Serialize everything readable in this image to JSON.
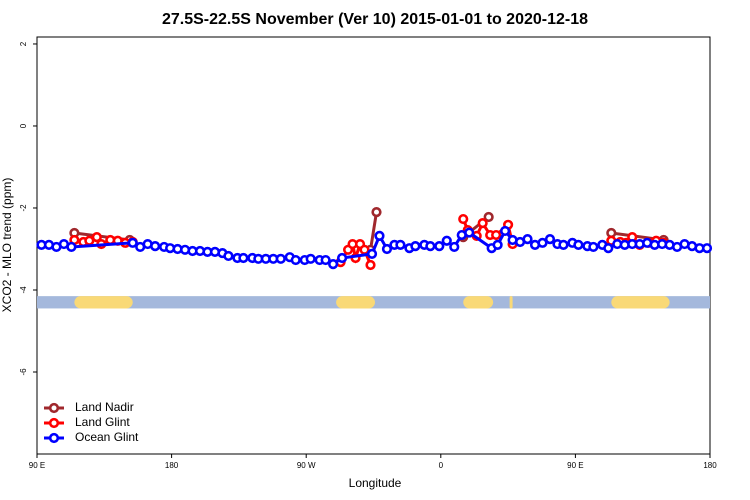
{
  "chart_data": {
    "type": "line",
    "title": "27.5S-22.5S November (Ver 10)   2015-01-01 to 2020-12-18",
    "x_label": "Longitude",
    "y_label": "XCO2 - MLO trend (ppm)",
    "xlim": [
      90,
      540
    ],
    "ylim": [
      -8,
      2.17
    ],
    "xticks": [
      {
        "value": 90,
        "label": "90 E"
      },
      180,
      {
        "value": 270,
        "label": "90 W"
      },
      {
        "value": 360,
        "label": "0"
      },
      {
        "value": 450,
        "label": "90 E"
      },
      {
        "value": 540,
        "label": "180"
      }
    ],
    "yticks": [
      -6,
      -4,
      -2,
      0,
      2
    ],
    "legend": "bottom-left",
    "strip": [
      -4.45,
      -4.15
    ],
    "strip_color": "#a4b8dc",
    "land_color": "#f9d977",
    "land": [
      [
        115,
        154
      ],
      [
        290,
        316
      ],
      [
        375,
        395
      ],
      [
        406,
        408
      ],
      [
        474,
        513
      ]
    ],
    "series": [
      {
        "name": "Land Nadir",
        "color": "#a0282d",
        "x": [
          115,
          152,
          null,
          313,
          317,
          null,
          375,
          392,
          null,
          474,
          509
        ],
        "values": [
          -2.61,
          -2.78,
          null,
          -3.02,
          -2.1,
          null,
          -2.71,
          -2.22,
          null,
          -2.61,
          -2.78
        ]
      },
      {
        "name": "Land Glint",
        "color": "#ff0000",
        "x": [
          115,
          121,
          125,
          130,
          133,
          139,
          144,
          149,
          154,
          null,
          293,
          298,
          301,
          303,
          306,
          309,
          313,
          null,
          375,
          378,
          384,
          388,
          393,
          397,
          405,
          408,
          null,
          474,
          480,
          484,
          488,
          493,
          499,
          504,
          509
        ],
        "values": [
          -2.78,
          -2.83,
          -2.8,
          -2.71,
          -2.88,
          -2.78,
          -2.8,
          -2.85,
          -2.83,
          null,
          -3.32,
          -3.02,
          -2.88,
          -3.22,
          -2.88,
          -3.02,
          -3.39,
          null,
          -2.27,
          -2.54,
          -2.68,
          -2.37,
          -2.66,
          -2.66,
          -2.41,
          -2.88,
          null,
          -2.8,
          -2.83,
          -2.85,
          -2.71,
          -2.9,
          -2.85,
          -2.8,
          -2.85
        ]
      },
      {
        "name": "Ocean Glint",
        "color": "#0000ff",
        "x": [
          93,
          98,
          103,
          108,
          113,
          154,
          159,
          164,
          169,
          175,
          179,
          184,
          189,
          194,
          199,
          204,
          209,
          214,
          218,
          224,
          228,
          234,
          238,
          243,
          248,
          253,
          259,
          263,
          269,
          273,
          279,
          283,
          288,
          294,
          314,
          319,
          324,
          329,
          333,
          339,
          343,
          349,
          353,
          359,
          364,
          369,
          374,
          379,
          394,
          398,
          403,
          408,
          413,
          418,
          423,
          428,
          433,
          438,
          442,
          448,
          452,
          458,
          462,
          468,
          472,
          478,
          483,
          488,
          493,
          498,
          503,
          508,
          513,
          518,
          523,
          528,
          533,
          538
        ],
        "values": [
          -2.9,
          -2.9,
          -2.95,
          -2.88,
          -2.95,
          -2.85,
          -2.95,
          -2.88,
          -2.93,
          -2.95,
          -2.98,
          -3.0,
          -3.02,
          -3.05,
          -3.05,
          -3.07,
          -3.07,
          -3.1,
          -3.17,
          -3.22,
          -3.22,
          -3.22,
          -3.24,
          -3.24,
          -3.24,
          -3.24,
          -3.2,
          -3.27,
          -3.27,
          -3.24,
          -3.27,
          -3.27,
          -3.37,
          -3.22,
          -3.12,
          -2.68,
          -3.0,
          -2.9,
          -2.9,
          -2.98,
          -2.93,
          -2.9,
          -2.93,
          -2.93,
          -2.8,
          -2.95,
          -2.66,
          -2.6,
          -2.98,
          -2.9,
          -2.56,
          -2.78,
          -2.83,
          -2.76,
          -2.9,
          -2.85,
          -2.76,
          -2.88,
          -2.9,
          -2.85,
          -2.9,
          -2.93,
          -2.95,
          -2.9,
          -2.98,
          -2.88,
          -2.9,
          -2.88,
          -2.88,
          -2.85,
          -2.9,
          -2.88,
          -2.9,
          -2.95,
          -2.88,
          -2.93,
          -2.98,
          -2.98
        ]
      }
    ]
  }
}
